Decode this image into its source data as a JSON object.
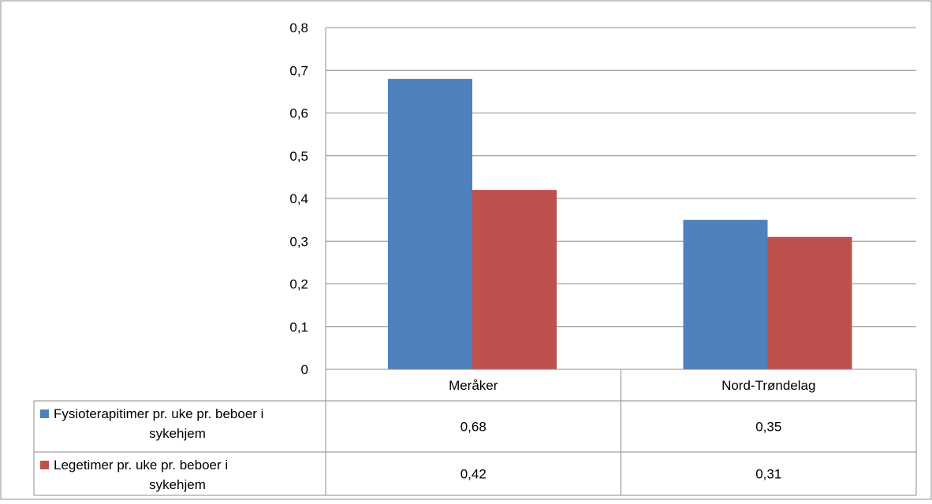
{
  "chart_data": {
    "type": "bar",
    "categories": [
      "Meråker",
      "Nord-Trøndelag"
    ],
    "series": [
      {
        "name": "Fysioterapitimer pr. uke pr. beboer i sykehjem",
        "name_lines": [
          "Fysioterapitimer pr. uke pr. beboer i",
          "sykehjem"
        ],
        "values": [
          0.68,
          0.35
        ],
        "labels": [
          "0,68",
          "0,35"
        ],
        "color": "#4F81BD"
      },
      {
        "name": "Legetimer pr. uke pr. beboer i sykehjem",
        "name_lines": [
          "Legetimer pr. uke pr. beboer i",
          "sykehjem"
        ],
        "values": [
          0.42,
          0.31
        ],
        "labels": [
          "0,42",
          "0,31"
        ],
        "color": "#C0504D"
      }
    ],
    "ylim": [
      0,
      0.8
    ],
    "yticks": [
      0,
      0.1,
      0.2,
      0.3,
      0.4,
      0.5,
      0.6,
      0.7,
      0.8
    ],
    "ytick_labels": [
      "0",
      "0,1",
      "0,2",
      "0,3",
      "0,4",
      "0,5",
      "0,6",
      "0,7",
      "0,8"
    ],
    "grid": true,
    "data_table": true,
    "legend": "data-table"
  }
}
